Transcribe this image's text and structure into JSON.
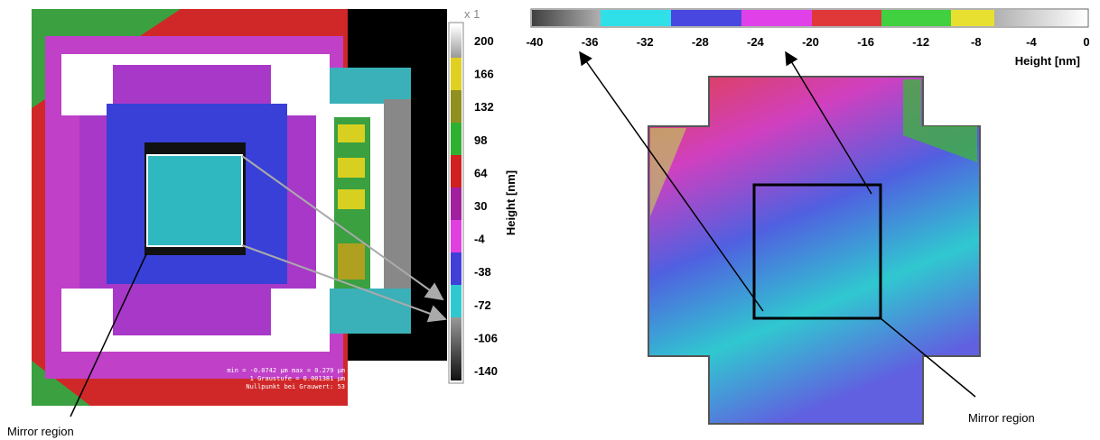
{
  "left_panel": {
    "scale_factor": "x 1",
    "colorbar": {
      "label": "Height [nm]",
      "ticks": [
        "200",
        "166",
        "132",
        "98",
        "64",
        "30",
        "-4",
        "-38",
        "-72",
        "-106",
        "-140"
      ]
    },
    "info": [
      "min = -0.0742 µm   max = 0.279 µm",
      "1 Graustufe = 0.001381 µm",
      "Nullpunkt bei Grauwert: 53"
    ],
    "annotation": "Mirror region"
  },
  "right_panel": {
    "colorbar": {
      "label": "Height [nm]",
      "ticks": [
        "-40",
        "-36",
        "-32",
        "-28",
        "-24",
        "-20",
        "-16",
        "-12",
        "-8",
        "-4",
        "0"
      ]
    },
    "annotation": "Mirror region"
  }
}
